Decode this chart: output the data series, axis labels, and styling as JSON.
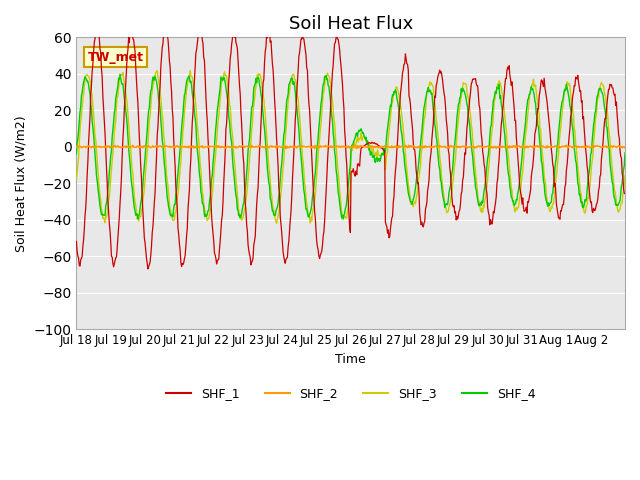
{
  "title": "Soil Heat Flux",
  "ylabel": "Soil Heat Flux (W/m2)",
  "xlabel": "Time",
  "ylim": [
    -100,
    60
  ],
  "yticks": [
    -100,
    -80,
    -60,
    -40,
    -20,
    0,
    20,
    40,
    60
  ],
  "xtick_labels": [
    "Jul 18",
    "Jul 19",
    "Jul 20",
    "Jul 21",
    "Jul 22",
    "Jul 23",
    "Jul 24",
    "Jul 25",
    "Jul 26",
    "Jul 27",
    "Jul 28",
    "Jul 29",
    "Jul 30",
    "Jul 31",
    "Aug 1",
    "Aug 2"
  ],
  "colors": {
    "SHF_1": "#cc0000",
    "SHF_2": "#ff9900",
    "SHF_3": "#cccc00",
    "SHF_4": "#00cc00"
  },
  "bg_color": "#e8e8e8",
  "fig_bg": "#ffffff",
  "annotation_text": "TW_met",
  "annotation_color": "#cc0000",
  "annotation_bg": "#ffffcc",
  "annotation_border": "#cc9900",
  "legend_labels": [
    "SHF_1",
    "SHF_2",
    "SHF_3",
    "SHF_4"
  ]
}
